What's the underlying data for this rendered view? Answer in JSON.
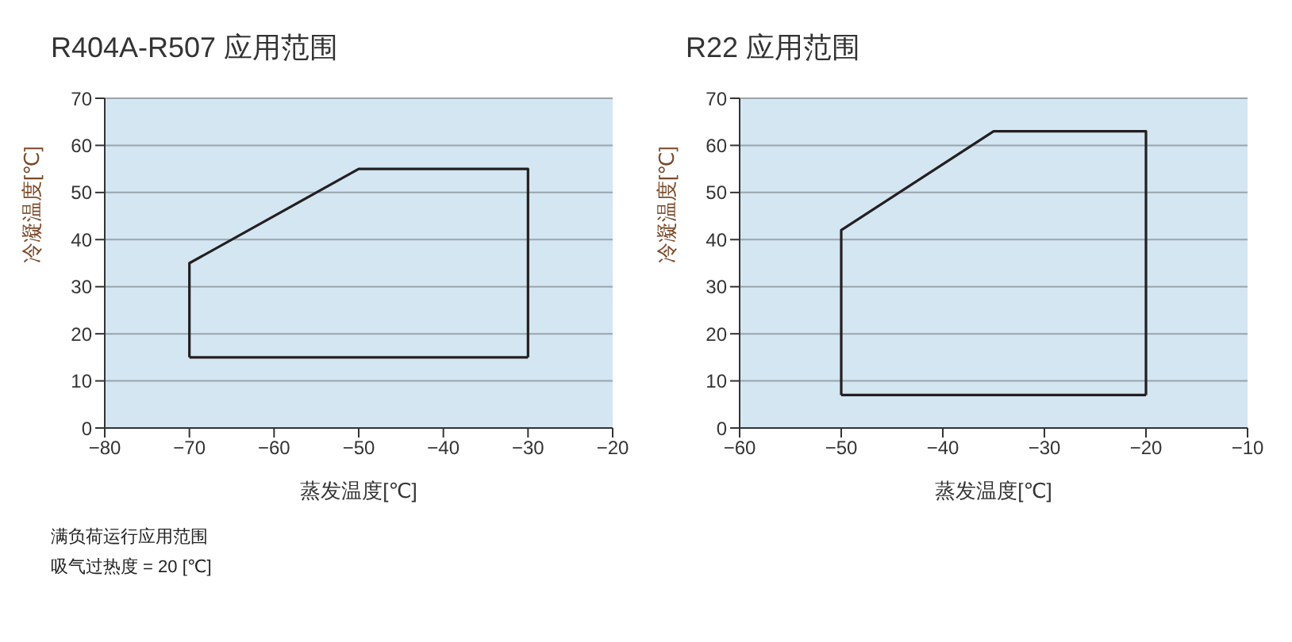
{
  "chart_data": [
    {
      "type": "line",
      "title": "R404A-R507 应用范围",
      "xlabel": "蒸发温度[℃]",
      "ylabel": "冷凝温度[℃]",
      "xlim": [
        -80,
        -20
      ],
      "xticks": [
        -80,
        -70,
        -60,
        -50,
        -40,
        -30,
        -20
      ],
      "ylim": [
        0,
        70
      ],
      "yticks": [
        0,
        10,
        20,
        30,
        40,
        50,
        60,
        70
      ],
      "grid": "y",
      "marker": "none",
      "line_style": "solid",
      "series": [
        {
          "color": "#231f20",
          "x": [
            -70,
            -70,
            -50,
            -30,
            -30
          ],
          "values": [
            15,
            35,
            55,
            55,
            15
          ]
        },
        {
          "color": "#231f20",
          "x": [
            -70,
            -30
          ],
          "values": [
            15,
            15
          ]
        }
      ],
      "annotations": [
        "满负荷运行应用范围",
        "吸气过热度 = 20 [℃]"
      ]
    },
    {
      "type": "line",
      "title": "R22 应用范围",
      "xlabel": "蒸发温度[℃]",
      "ylabel": "冷凝温度[℃]",
      "xlim": [
        -60,
        -10
      ],
      "xticks": [
        -60,
        -50,
        -40,
        -30,
        -20,
        -10
      ],
      "ylim": [
        0,
        70
      ],
      "yticks": [
        0,
        10,
        20,
        30,
        40,
        50,
        60,
        70
      ],
      "grid": "y",
      "marker": "none",
      "line_style": "solid",
      "series": [
        {
          "color": "#231f20",
          "x": [
            -50,
            -50,
            -35,
            -20,
            -20
          ],
          "values": [
            7,
            42,
            63,
            63,
            7
          ]
        },
        {
          "color": "#231f20",
          "x": [
            -50,
            -20
          ],
          "values": [
            7,
            7
          ]
        }
      ]
    }
  ]
}
